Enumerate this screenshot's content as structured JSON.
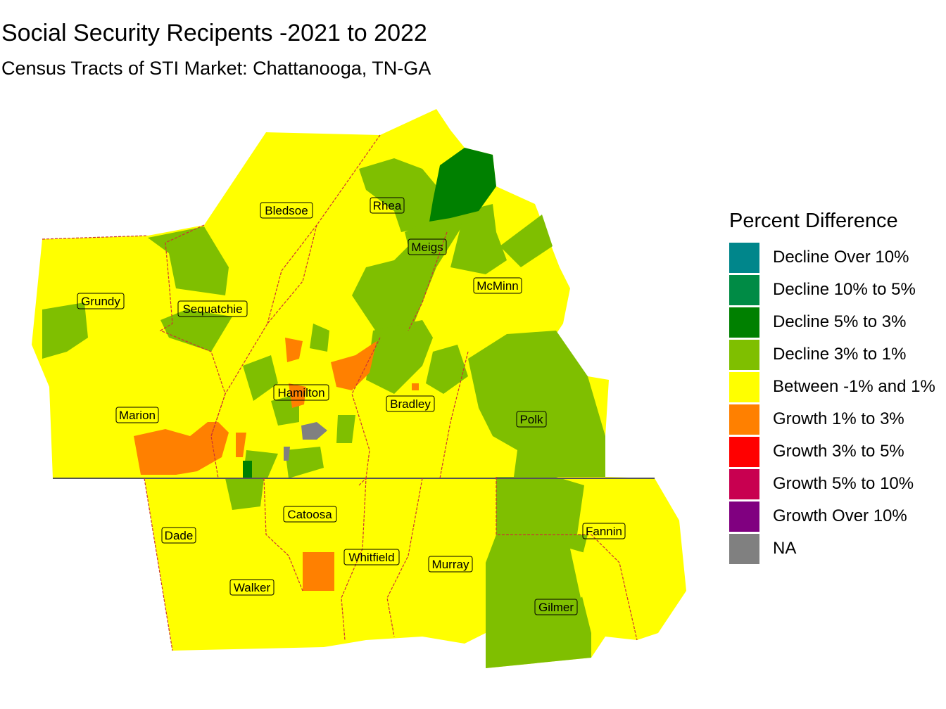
{
  "title": "Social Security Recipents -2021 to 2022",
  "subtitle": "Census Tracts of STI Market: Chattanooga, TN-GA",
  "legend": {
    "title": "Percent Difference",
    "items": [
      {
        "label": "Decline Over 10%",
        "color": "#00868B"
      },
      {
        "label": "Decline 10% to 5%",
        "color": "#008B45"
      },
      {
        "label": "Decline 5% to 3%",
        "color": "#008000"
      },
      {
        "label": "Decline 3% to 1%",
        "color": "#7FBF00"
      },
      {
        "label": "Between -1% and 1%",
        "color": "#FFFF00"
      },
      {
        "label": "Growth 1% to 3%",
        "color": "#FF8000"
      },
      {
        "label": "Growth 3% to 5%",
        "color": "#FF0000"
      },
      {
        "label": "Growth 5% to 10%",
        "color": "#C80050"
      },
      {
        "label": "Growth Over 10%",
        "color": "#800080"
      },
      {
        "label": "NA",
        "color": "#808080"
      }
    ]
  },
  "counties": {
    "bledsoe": "Bledsoe",
    "rhea": "Rhea",
    "meigs": "Meigs",
    "mcminn": "McMinn",
    "grundy": "Grundy",
    "sequatchie": "Sequatchie",
    "hamilton": "Hamilton",
    "bradley": "Bradley",
    "marion": "Marion",
    "polk": "Polk",
    "catoosa": "Catoosa",
    "dade": "Dade",
    "fannin": "Fannin",
    "whitfield": "Whitfield",
    "murray": "Murray",
    "walker": "Walker",
    "gilmer": "Gilmer"
  }
}
